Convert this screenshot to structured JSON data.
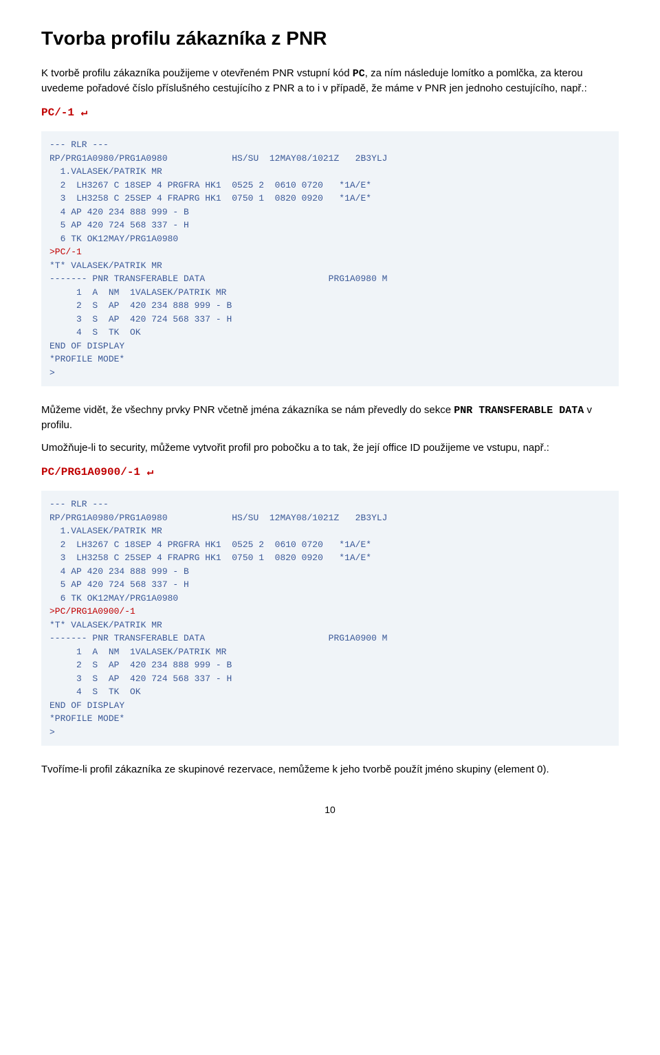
{
  "heading": "Tvorba profilu zákazníka z PNR",
  "para1_a": "K tvorbě profilu zákazníka použijeme v otevřeném PNR vstupní kód ",
  "para1_code": "PC",
  "para1_b": ", za ním následuje lomítko a pomlčka, za kterou uvedeme pořadové číslo příslušného cestujícího z PNR a to i v případě, že máme v PNR jen jednoho cestujícího, např.:",
  "cmd1": "PC/-1 ↵",
  "terminal1": "--- RLR ---\nRP/PRG1A0980/PRG1A0980            HS/SU  12MAY08/1021Z   2B3YLJ\n  1.VALASEK/PATRIK MR\n  2  LH3267 C 18SEP 4 PRGFRA HK1  0525 2  0610 0720   *1A/E*\n  3  LH3258 C 25SEP 4 FRAPRG HK1  0750 1  0820 0920   *1A/E*\n  4 AP 420 234 888 999 - B\n  5 AP 420 724 568 337 - H\n  6 TK OK12MAY/PRG1A0980",
  "terminal1_cmd": ">PC/-1",
  "terminal1_b": "*T* VALASEK/PATRIK MR\n------- PNR TRANSFERABLE DATA                       PRG1A0980 M\n     1  A  NM  1VALASEK/PATRIK MR\n     2  S  AP  420 234 888 999 - B\n     3  S  AP  420 724 568 337 - H\n     4  S  TK  OK\nEND OF DISPLAY\n*PROFILE MODE*\n>",
  "para2_a": "Můžeme vidět, že všechny prvky PNR včetně jména zákazníka se nám převedly do sekce ",
  "para2_code": "PNR TRANSFERABLE DATA",
  "para2_b": " v profilu.",
  "para3": "Umožňuje-li to security, můžeme vytvořit profil pro pobočku a to tak, že její office ID použijeme ve vstupu, např.:",
  "cmd2": "PC/PRG1A0900/-1 ↵",
  "terminal2": "--- RLR ---\nRP/PRG1A0980/PRG1A0980            HS/SU  12MAY08/1021Z   2B3YLJ\n  1.VALASEK/PATRIK MR\n  2  LH3267 C 18SEP 4 PRGFRA HK1  0525 2  0610 0720   *1A/E*\n  3  LH3258 C 25SEP 4 FRAPRG HK1  0750 1  0820 0920   *1A/E*\n  4 AP 420 234 888 999 - B\n  5 AP 420 724 568 337 - H\n  6 TK OK12MAY/PRG1A0980",
  "terminal2_cmd": ">PC/PRG1A0900/-1",
  "terminal2_b": "*T* VALASEK/PATRIK MR\n------- PNR TRANSFERABLE DATA                       PRG1A0900 M\n     1  A  NM  1VALASEK/PATRIK MR\n     2  S  AP  420 234 888 999 - B\n     3  S  AP  420 724 568 337 - H\n     4  S  TK  OK\nEND OF DISPLAY\n*PROFILE MODE*\n>",
  "para4": "Tvoříme-li profil zákazníka ze skupinové rezervace, nemůžeme k jeho tvorbě použít jméno skupiny (element 0).",
  "page_number": "10",
  "colors": {
    "terminal_bg": "#f0f4f8",
    "terminal_text": "#3b5998",
    "cmd_red": "#c00000",
    "body_text": "#000000"
  }
}
